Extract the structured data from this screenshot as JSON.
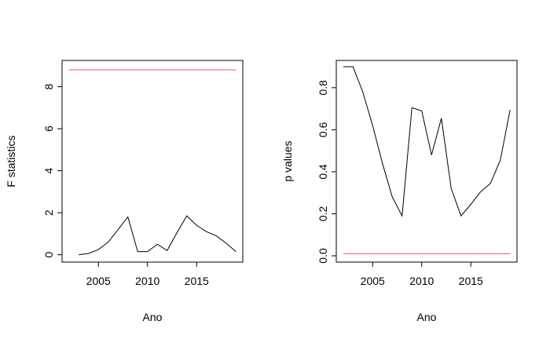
{
  "chart_data": [
    {
      "type": "line",
      "title": "",
      "xlabel": "Ano",
      "ylabel": "F statistics",
      "xlim": [
        2001.3,
        2019.7
      ],
      "ylim": [
        -0.35,
        9.25
      ],
      "x_ticks": [
        "2005",
        "2010",
        "2015"
      ],
      "y_ticks": [
        "0",
        "2",
        "4",
        "6",
        "8"
      ],
      "colors": {
        "series": "#000000",
        "reference": "#df536b"
      },
      "series": [
        {
          "x": [
            2003,
            2004,
            2005,
            2006,
            2007,
            2008,
            2009,
            2010,
            2011,
            2012,
            2013,
            2014,
            2015,
            2016,
            2017,
            2018,
            2019
          ],
          "values": [
            0.0,
            0.06,
            0.25,
            0.6,
            1.2,
            1.8,
            0.15,
            0.15,
            0.5,
            0.2,
            1.05,
            1.85,
            1.4,
            1.1,
            0.9,
            0.55,
            0.15
          ]
        }
      ],
      "reference_line": {
        "y": 8.8,
        "x": [
          2002,
          2019
        ]
      }
    },
    {
      "type": "line",
      "title": "",
      "xlabel": "Ano",
      "ylabel": "p values",
      "xlim": [
        2001.3,
        2019.7
      ],
      "ylim": [
        -0.03,
        0.93
      ],
      "x_ticks": [
        "2005",
        "2010",
        "2015"
      ],
      "y_ticks": [
        "0.0",
        "0.2",
        "0.4",
        "0.6",
        "0.8"
      ],
      "colors": {
        "series": "#000000",
        "reference": "#df536b"
      },
      "series": [
        {
          "x": [
            2002,
            2003,
            2004,
            2005,
            2006,
            2007,
            2008,
            2009,
            2010,
            2011,
            2012,
            2013,
            2014,
            2015,
            2016,
            2017,
            2018,
            2019
          ],
          "values": [
            0.9,
            0.9,
            0.78,
            0.62,
            0.44,
            0.28,
            0.19,
            0.705,
            0.69,
            0.48,
            0.655,
            0.32,
            0.19,
            0.245,
            0.305,
            0.345,
            0.455,
            0.695
          ]
        }
      ],
      "reference_line": {
        "y": 0.01,
        "x": [
          2002,
          2019
        ]
      }
    }
  ]
}
